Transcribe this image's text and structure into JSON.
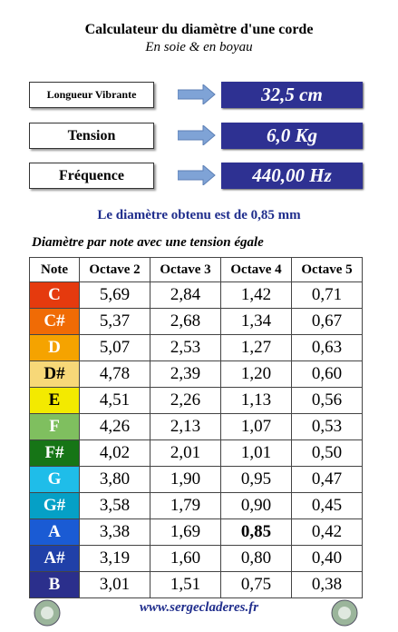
{
  "header": {
    "title": "Calculateur du diamètre d'une corde",
    "subtitle": "En soie & en boyau"
  },
  "inputs": [
    {
      "label": "Longueur Vibrante",
      "value": "32,5 cm"
    },
    {
      "label": "Tension",
      "value": "6,0 Kg"
    },
    {
      "label": "Fréquence",
      "value": "440,00 Hz"
    }
  ],
  "result": "Le diamètre obtenu est de 0,85 mm",
  "table": {
    "title": "Diamètre par note avec une tension égale",
    "header": [
      "Note",
      "Octave 2",
      "Octave 3",
      "Octave 4",
      "Octave 5"
    ],
    "rows": [
      [
        "C",
        "5,69",
        "2,84",
        "1,42",
        "0,71"
      ],
      [
        "C#",
        "5,37",
        "2,68",
        "1,34",
        "0,67"
      ],
      [
        "D",
        "5,07",
        "2,53",
        "1,27",
        "0,63"
      ],
      [
        "D#",
        "4,78",
        "2,39",
        "1,20",
        "0,60"
      ],
      [
        "E",
        "4,51",
        "2,26",
        "1,13",
        "0,56"
      ],
      [
        "F",
        "4,26",
        "2,13",
        "1,07",
        "0,53"
      ],
      [
        "F#",
        "4,02",
        "2,01",
        "1,01",
        "0,50"
      ],
      [
        "G",
        "3,80",
        "1,90",
        "0,95",
        "0,47"
      ],
      [
        "G#",
        "3,58",
        "1,79",
        "0,90",
        "0,45"
      ],
      [
        "A",
        "3,38",
        "1,69",
        "0,85",
        "0,42"
      ],
      [
        "A#",
        "3,19",
        "1,60",
        "0,80",
        "0,40"
      ],
      [
        "B",
        "3,01",
        "1,51",
        "0,75",
        "0,38"
      ]
    ]
  },
  "footer": "www.sergecladeres.fr"
}
